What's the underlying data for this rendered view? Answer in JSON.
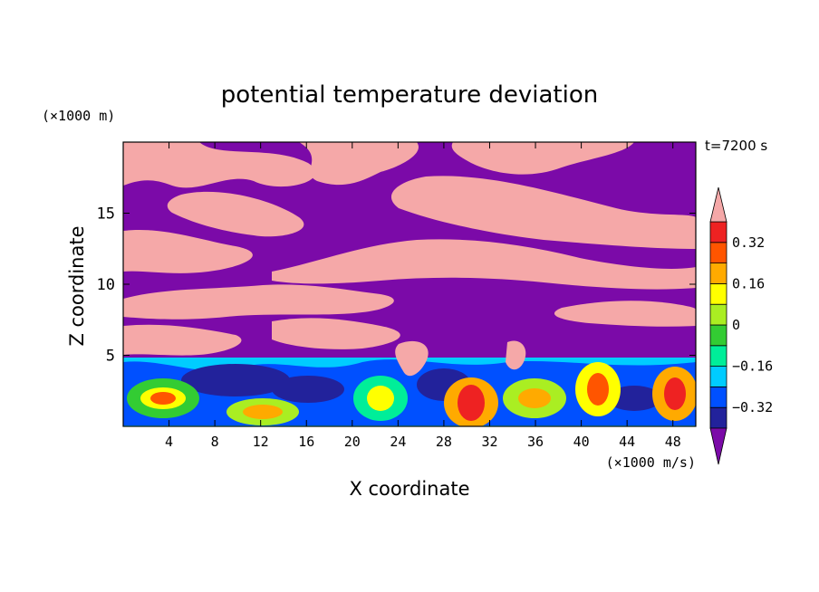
{
  "chart_data": {
    "type": "heatmap",
    "title": "potential temperature deviation",
    "xlabel": "X coordinate",
    "ylabel": "Z coordinate",
    "x_unit": "(×1000 m/s)",
    "y_unit": "(×1000 m)",
    "time_label": "t=7200 s",
    "xlim": [
      0,
      50
    ],
    "ylim": [
      0,
      20
    ],
    "x_ticks": [
      4,
      8,
      12,
      16,
      20,
      24,
      28,
      32,
      36,
      40,
      44,
      48
    ],
    "y_ticks": [
      5,
      10,
      15
    ],
    "colorbar": {
      "levels": [
        -0.4,
        -0.32,
        -0.24,
        -0.16,
        -0.08,
        0,
        0.08,
        0.16,
        0.24,
        0.32,
        0.4
      ],
      "tick_labels": [
        "0.32",
        "0.16",
        "0",
        "−0.16",
        "−0.32"
      ],
      "tick_values": [
        0.32,
        0.16,
        0,
        -0.16,
        -0.32
      ],
      "colors": [
        "#7B0AA8",
        "#22229B",
        "#0050FF",
        "#00CCFF",
        "#00EE99",
        "#33CC33",
        "#AAEE22",
        "#FFFF00",
        "#FFAA00",
        "#FF5500",
        "#EE2222",
        "#F5A8A8"
      ],
      "extend": "both"
    }
  }
}
